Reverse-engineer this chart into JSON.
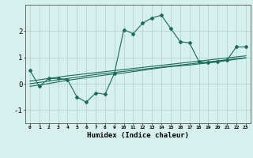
{
  "x": [
    0,
    1,
    2,
    3,
    4,
    5,
    6,
    7,
    8,
    9,
    10,
    11,
    12,
    13,
    14,
    15,
    16,
    17,
    18,
    19,
    20,
    21,
    22,
    23
  ],
  "main_line": [
    0.5,
    -0.1,
    0.2,
    0.2,
    0.15,
    -0.5,
    -0.7,
    -0.35,
    -0.4,
    0.4,
    2.05,
    1.9,
    2.3,
    2.5,
    2.6,
    2.1,
    1.6,
    1.55,
    0.85,
    0.8,
    0.85,
    0.9,
    1.4,
    1.4
  ],
  "reg_line1": [
    0.0,
    0.05,
    0.1,
    0.15,
    0.2,
    0.25,
    0.3,
    0.35,
    0.39,
    0.43,
    0.47,
    0.51,
    0.55,
    0.59,
    0.63,
    0.67,
    0.71,
    0.75,
    0.79,
    0.83,
    0.87,
    0.91,
    0.95,
    0.99
  ],
  "reg_line2": [
    -0.1,
    -0.05,
    0.01,
    0.07,
    0.13,
    0.18,
    0.23,
    0.28,
    0.33,
    0.37,
    0.41,
    0.46,
    0.51,
    0.56,
    0.61,
    0.65,
    0.68,
    0.71,
    0.75,
    0.79,
    0.83,
    0.88,
    0.93,
    0.98
  ],
  "reg_line3": [
    0.1,
    0.15,
    0.2,
    0.25,
    0.3,
    0.34,
    0.38,
    0.42,
    0.46,
    0.5,
    0.54,
    0.58,
    0.62,
    0.66,
    0.7,
    0.74,
    0.78,
    0.82,
    0.86,
    0.9,
    0.94,
    0.98,
    1.02,
    1.06
  ],
  "line_color": "#1a6b5a",
  "bg_color": "#d6f0ee",
  "grid_color": "#b5d5d0",
  "xlabel": "Humidex (Indice chaleur)",
  "ylim": [
    -1.5,
    3.0
  ],
  "yticks": [
    -1,
    0,
    1,
    2
  ],
  "xlim": [
    -0.5,
    23.5
  ]
}
